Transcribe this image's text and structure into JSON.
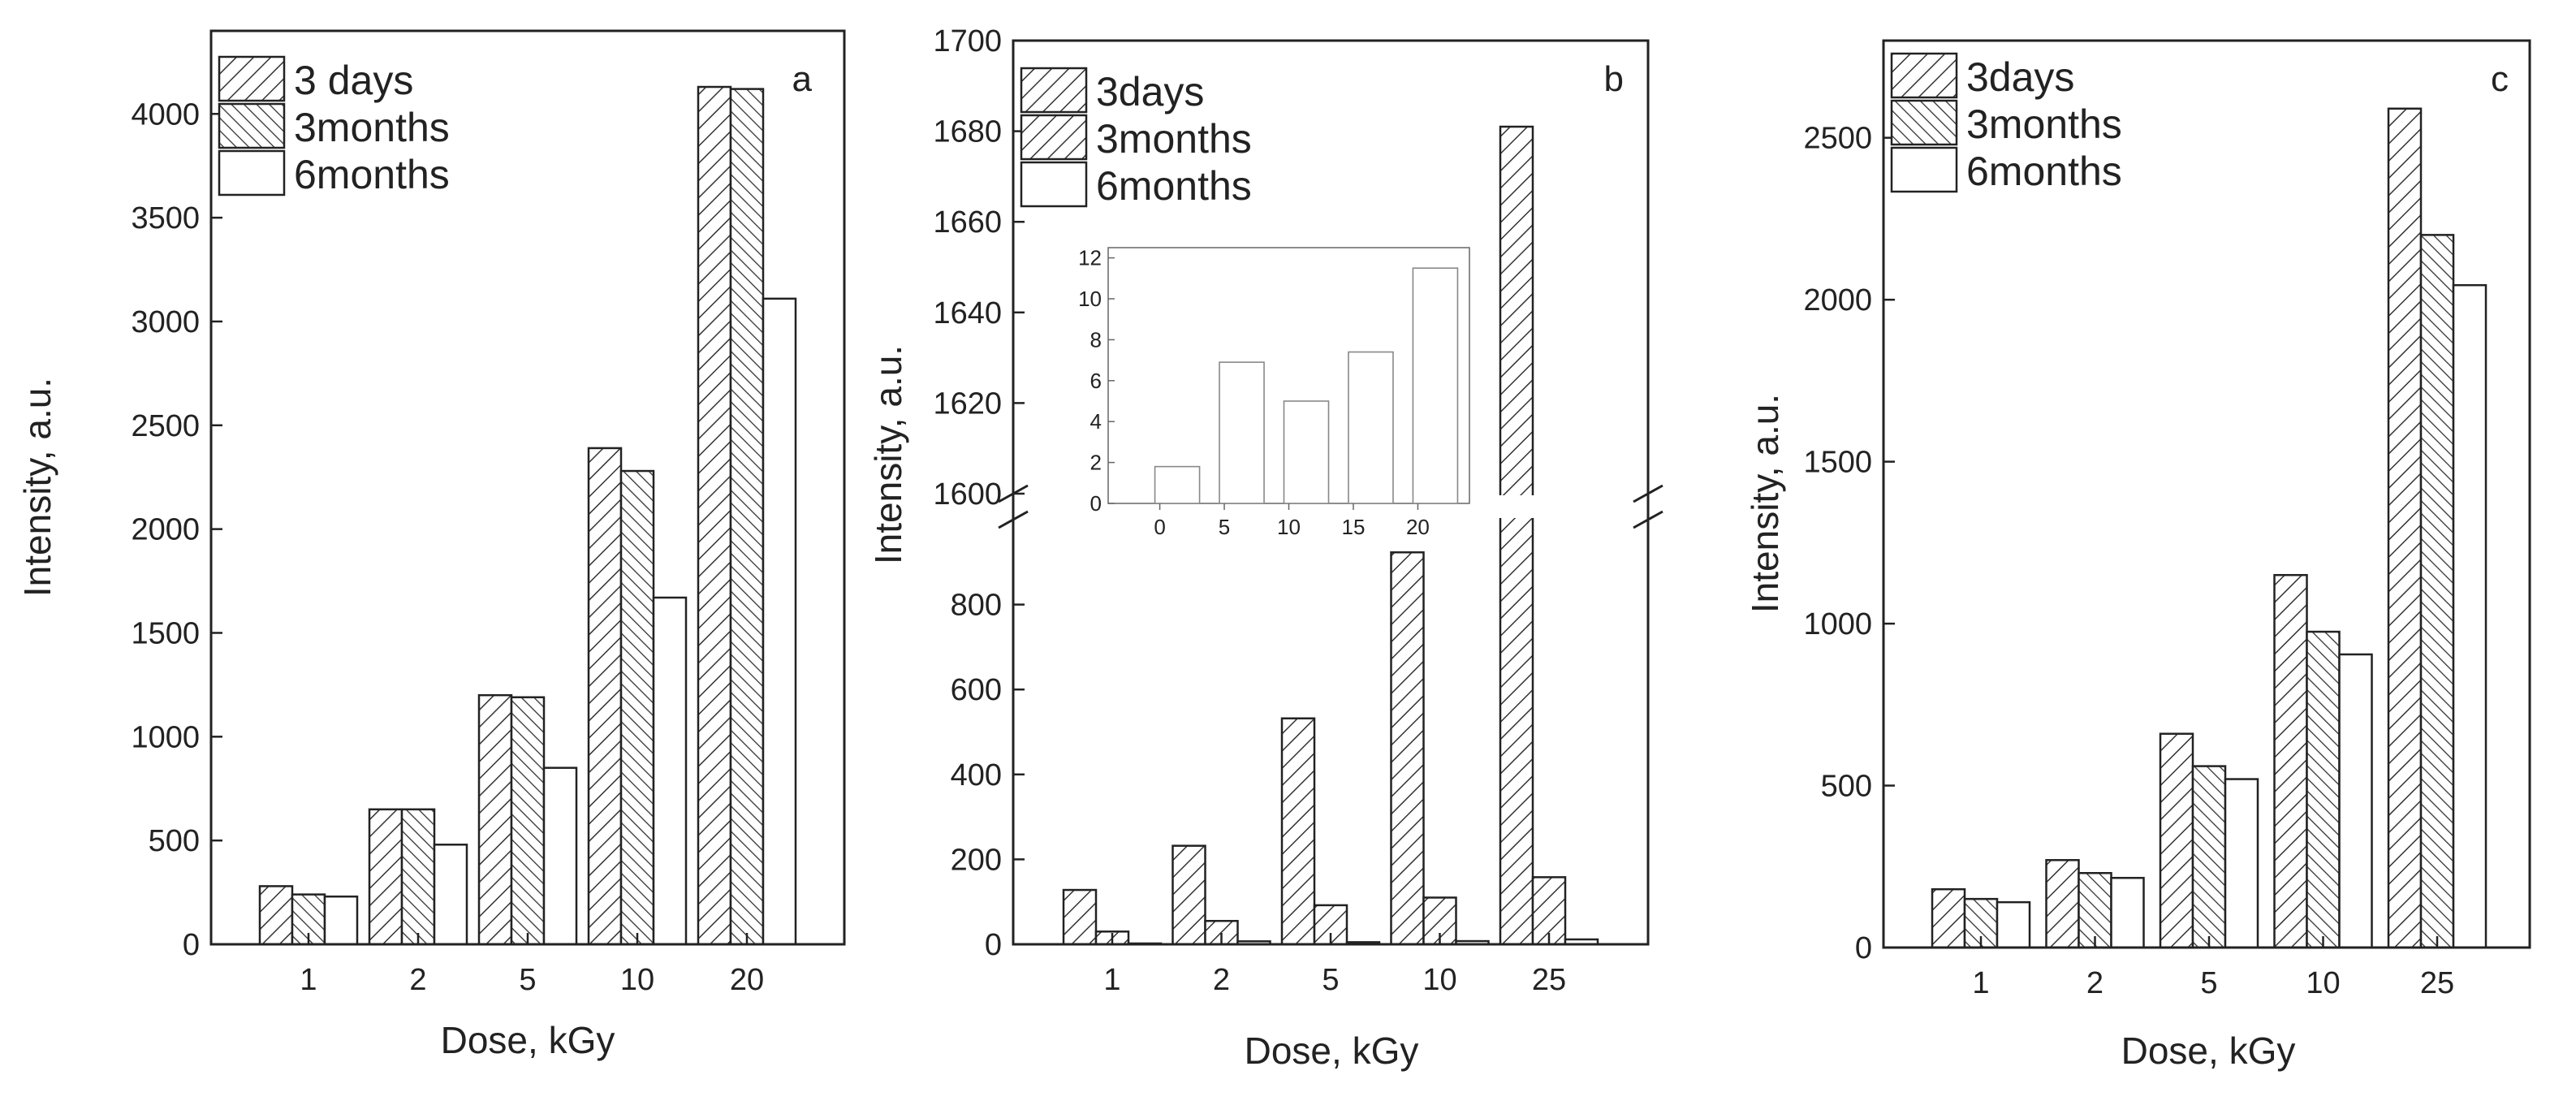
{
  "chart_data": [
    {
      "type": "bar",
      "panel_label": "a",
      "xlabel": "Dose, kGy",
      "ylabel": "Intensity, a.u.",
      "categories": [
        "1",
        "2",
        "5",
        "10",
        "20"
      ],
      "ylim": [
        0,
        4400
      ],
      "yticks": [
        0,
        500,
        1000,
        1500,
        2000,
        2500,
        3000,
        3500,
        4000
      ],
      "legend_position": "top-left",
      "series": [
        {
          "name": "3 days",
          "pattern": "diagonal-up",
          "values": [
            280,
            650,
            1200,
            2390,
            4130
          ]
        },
        {
          "name": "3months",
          "pattern": "diagonal-cross",
          "values": [
            240,
            650,
            1190,
            2280,
            4120
          ]
        },
        {
          "name": "6months",
          "pattern": "none",
          "values": [
            230,
            480,
            850,
            1670,
            3110
          ]
        }
      ]
    },
    {
      "type": "bar",
      "panel_label": "b",
      "xlabel": "Dose, kGy",
      "ylabel": "Intensity, a.u.",
      "categories": [
        "1",
        "2",
        "5",
        "10",
        "25"
      ],
      "axis_break": true,
      "ylim_lower": [
        0,
        1000
      ],
      "yticks_lower": [
        0,
        200,
        400,
        600,
        800
      ],
      "ylim_upper": [
        1600,
        1700
      ],
      "yticks_upper": [
        1600,
        1620,
        1640,
        1660,
        1680,
        1700
      ],
      "legend_position": "top-left",
      "series": [
        {
          "name": "3days",
          "pattern": "diagonal-up",
          "values": [
            128,
            232,
            532,
            923,
            1681
          ]
        },
        {
          "name": "3months",
          "pattern": "diagonal-up",
          "values": [
            30,
            55,
            92,
            110,
            158
          ]
        },
        {
          "name": "6months",
          "pattern": "none",
          "values": [
            2,
            7,
            5,
            7.5,
            11.5
          ]
        }
      ],
      "inset": {
        "type": "bar",
        "x": [
          0,
          5,
          10,
          15,
          20
        ],
        "values": [
          1.8,
          6.9,
          5,
          7.4,
          11.5
        ],
        "xticks": [
          0,
          5,
          10,
          15,
          20
        ],
        "yticks": [
          0,
          2,
          4,
          6,
          8,
          10,
          12
        ],
        "xlim": [
          -4,
          24
        ],
        "ylim": [
          0,
          12.5
        ]
      }
    },
    {
      "type": "bar",
      "panel_label": "c",
      "xlabel": "Dose, kGy",
      "ylabel": "Intensity, a.u.",
      "categories": [
        "1",
        "2",
        "5",
        "10",
        "25"
      ],
      "ylim": [
        0,
        2800
      ],
      "yticks": [
        0,
        500,
        1000,
        1500,
        2000,
        2500
      ],
      "legend_position": "top-left",
      "series": [
        {
          "name": "3days",
          "pattern": "diagonal-up",
          "values": [
            180,
            270,
            660,
            1150,
            2590
          ]
        },
        {
          "name": "3months",
          "pattern": "diagonal-cross",
          "values": [
            150,
            230,
            560,
            975,
            2200
          ]
        },
        {
          "name": "6months",
          "pattern": "none",
          "values": [
            140,
            215,
            520,
            905,
            2045
          ]
        }
      ]
    }
  ]
}
